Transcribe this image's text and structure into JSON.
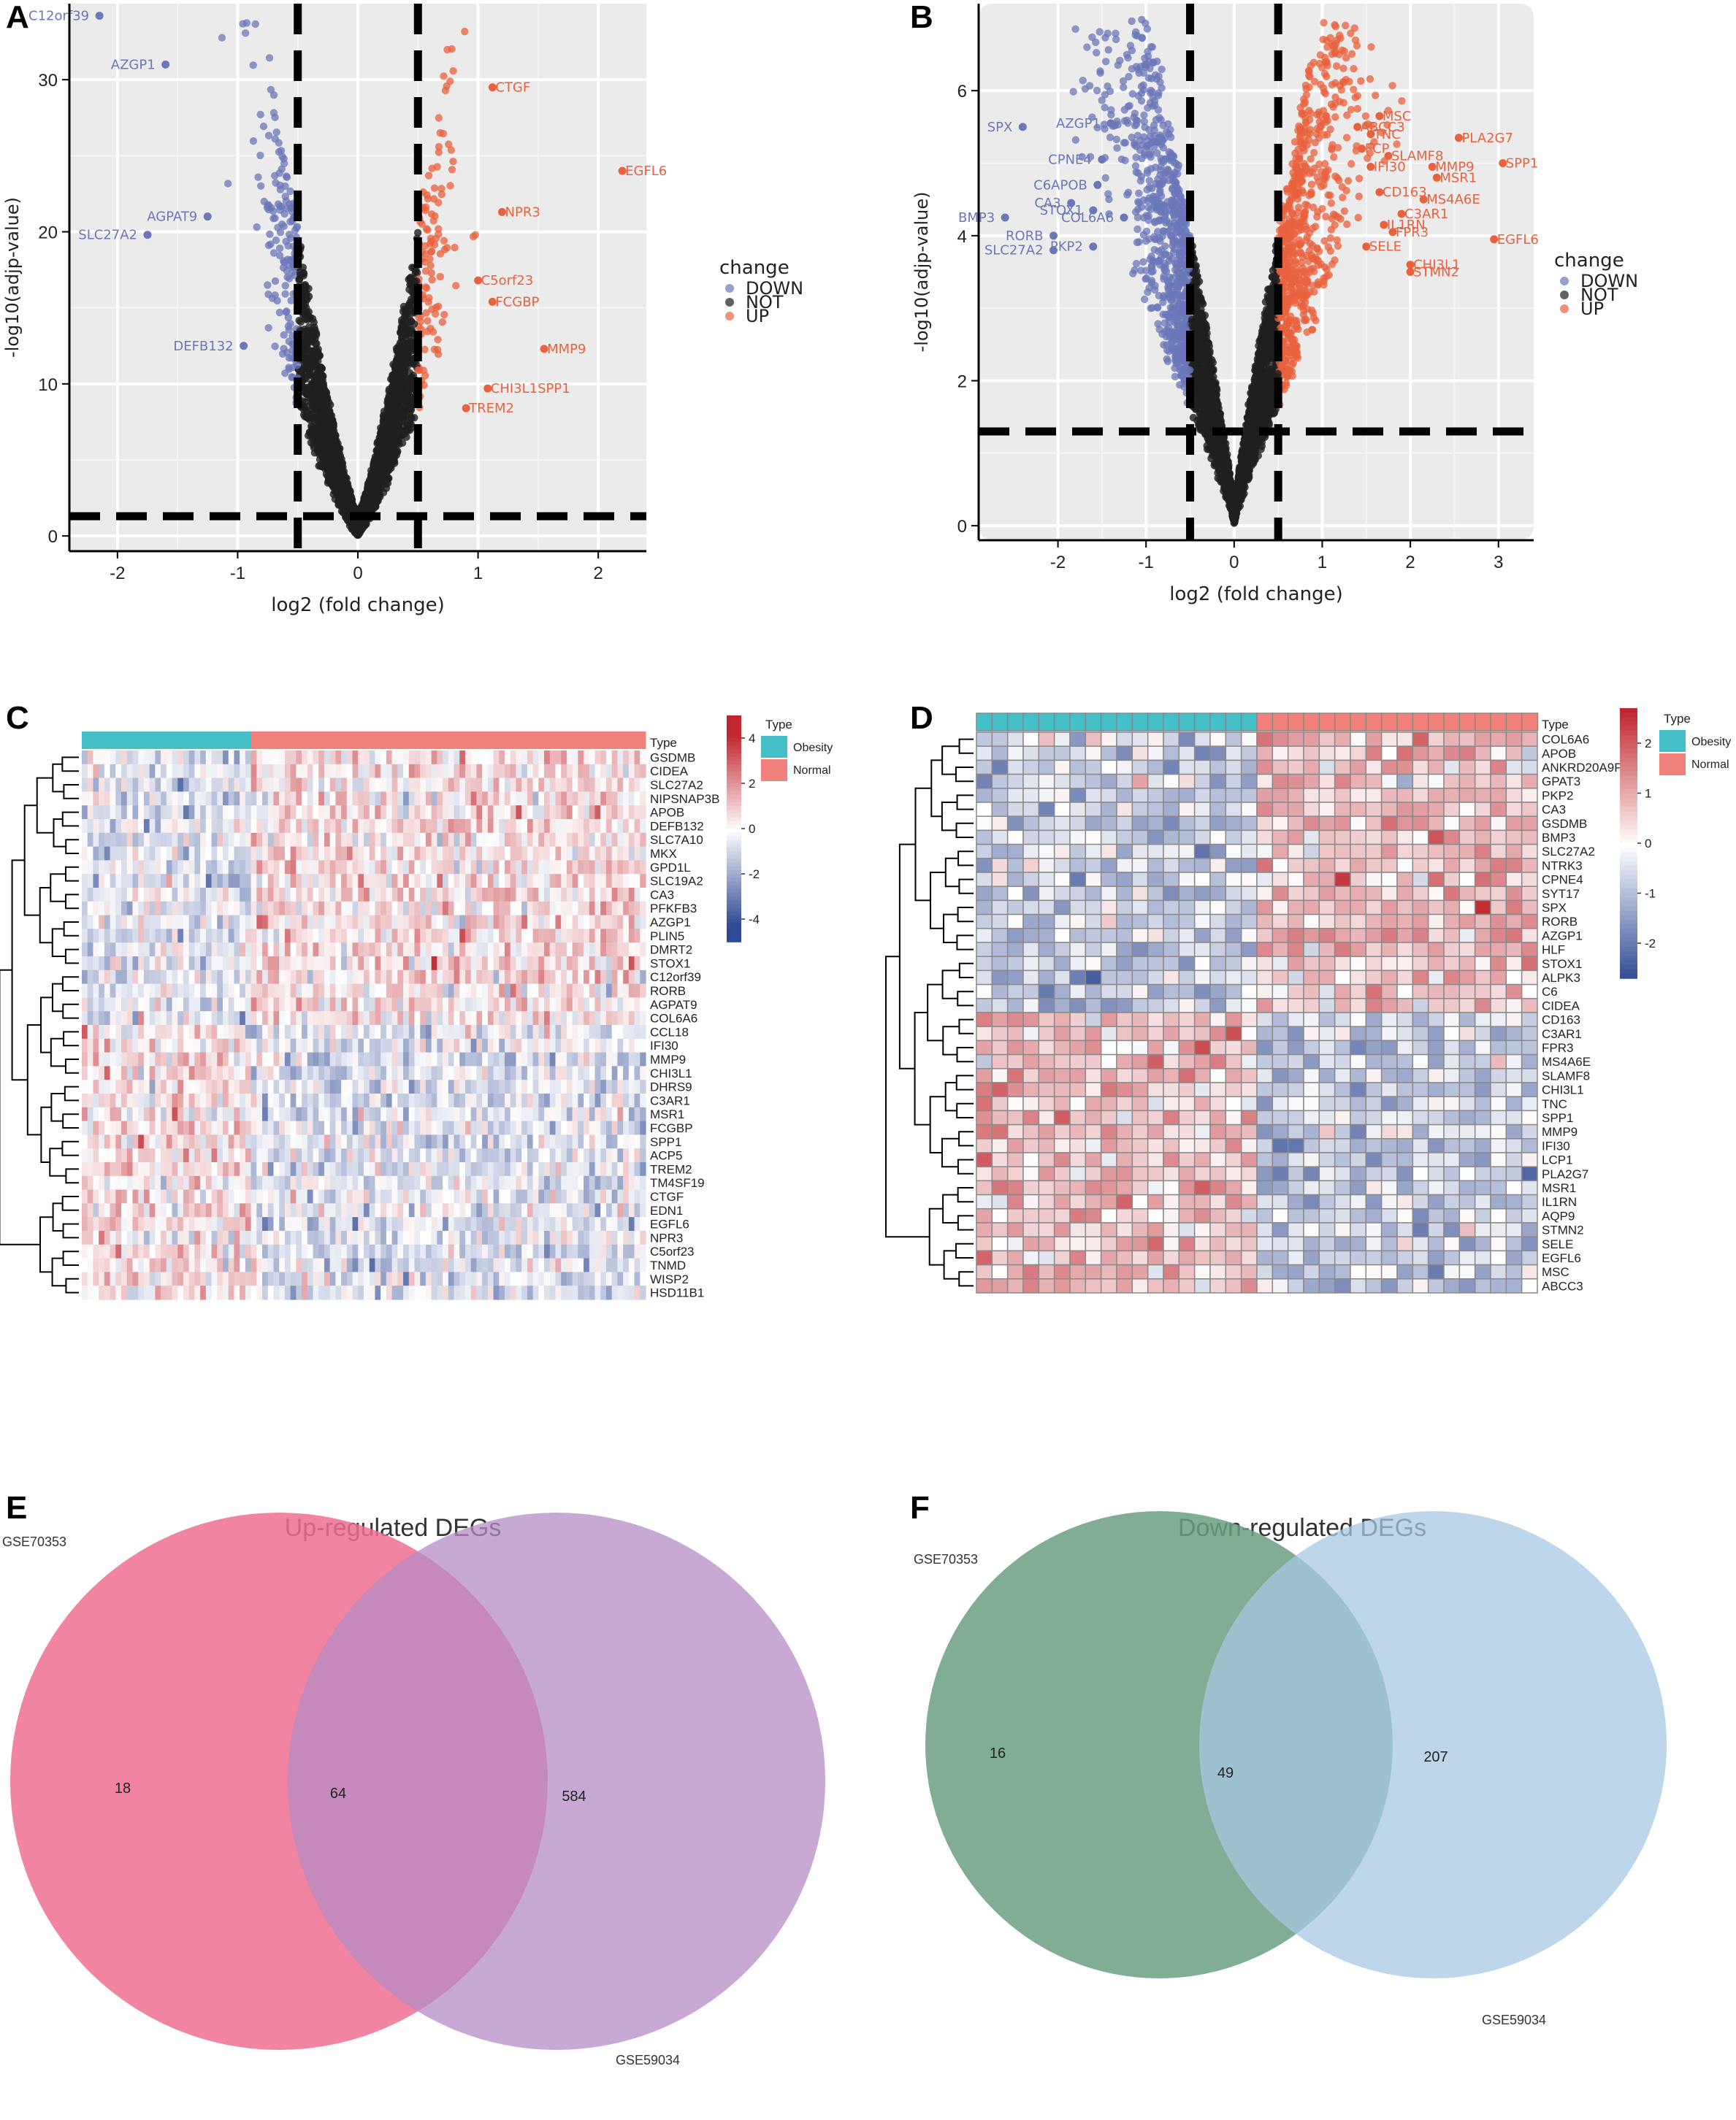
{
  "panels": {
    "A": "A",
    "B": "B",
    "C": "C",
    "D": "D",
    "E": "E",
    "F": "F"
  },
  "colors": {
    "down": "#6a77b8",
    "not": "#1f1f1f",
    "up": "#e8623e",
    "panel_bg": "#ebebeb",
    "obesity": "#45c0c9",
    "normal": "#f0807a",
    "heat_high": "#c0262d",
    "heat_low": "#2f4a94",
    "venn_up_left": "#ee6f91",
    "venn_up_right": "#b68cc4",
    "venn_down_left": "#6a9f80",
    "venn_down_right": "#a7c8e3"
  },
  "chart_data": [
    {
      "id": "A",
      "type": "scatter",
      "title": "",
      "xlabel": "log2 (fold change)",
      "ylabel": "-log10(adjp-value)",
      "xlim": [
        -2.4,
        2.4
      ],
      "ylim": [
        -1,
        35
      ],
      "xticks": [
        -2,
        -1,
        0,
        1,
        2
      ],
      "yticks": [
        0,
        10,
        20,
        30
      ],
      "thresholds": {
        "x": [
          -0.5,
          0.5
        ],
        "y": 1.3
      },
      "legend": {
        "title": "change",
        "entries": [
          "DOWN",
          "NOT",
          "UP"
        ]
      },
      "labeled_genes": [
        {
          "name": "C12orf39",
          "x": -2.15,
          "y": 34.2,
          "group": "down"
        },
        {
          "name": "AZGP1",
          "x": -1.6,
          "y": 31.0,
          "group": "down"
        },
        {
          "name": "AGPAT9",
          "x": -1.25,
          "y": 21.0,
          "group": "down"
        },
        {
          "name": "SLC27A2",
          "x": -1.75,
          "y": 19.8,
          "group": "down"
        },
        {
          "name": "DEFB132",
          "x": -0.95,
          "y": 12.5,
          "group": "down"
        },
        {
          "name": "CTGF",
          "x": 1.12,
          "y": 29.5,
          "group": "up"
        },
        {
          "name": "EGFL6",
          "x": 2.2,
          "y": 24.0,
          "group": "up"
        },
        {
          "name": "NPR3",
          "x": 1.2,
          "y": 21.3,
          "group": "up"
        },
        {
          "name": "C5orf23",
          "x": 1.0,
          "y": 16.8,
          "group": "up"
        },
        {
          "name": "FCGBP",
          "x": 1.12,
          "y": 15.4,
          "group": "up"
        },
        {
          "name": "MMP9",
          "x": 1.55,
          "y": 12.3,
          "group": "up"
        },
        {
          "name": "CHI3L1SPP1",
          "x": 1.08,
          "y": 9.7,
          "group": "up"
        },
        {
          "name": "TREM2",
          "x": 0.9,
          "y": 8.4,
          "group": "up"
        }
      ]
    },
    {
      "id": "B",
      "type": "scatter",
      "title": "",
      "xlabel": "log2 (fold change)",
      "ylabel": "-log10(adjp-value)",
      "xlim": [
        -2.9,
        3.4
      ],
      "ylim": [
        -0.2,
        7.2
      ],
      "xticks": [
        -2,
        -1,
        0,
        1,
        2,
        3
      ],
      "yticks": [
        0,
        2,
        4,
        6
      ],
      "thresholds": {
        "x": [
          -0.5,
          0.5
        ],
        "y": 1.3
      },
      "legend": {
        "title": "change",
        "entries": [
          "DOWN",
          "NOT",
          "UP"
        ]
      },
      "labeled_genes": [
        {
          "name": "SPX",
          "x": -2.4,
          "y": 5.5,
          "group": "down"
        },
        {
          "name": "AZGP1",
          "x": -1.4,
          "y": 5.55,
          "group": "down"
        },
        {
          "name": "CPNE4",
          "x": -1.5,
          "y": 5.05,
          "group": "down"
        },
        {
          "name": "C6APOB",
          "x": -1.55,
          "y": 4.7,
          "group": "down"
        },
        {
          "name": "CA3",
          "x": -1.85,
          "y": 4.45,
          "group": "down"
        },
        {
          "name": "STOX1",
          "x": -1.6,
          "y": 4.35,
          "group": "down"
        },
        {
          "name": "COL6A6",
          "x": -1.25,
          "y": 4.25,
          "group": "down"
        },
        {
          "name": "BMP3",
          "x": -2.6,
          "y": 4.25,
          "group": "down"
        },
        {
          "name": "RORB",
          "x": -2.05,
          "y": 4.0,
          "group": "down"
        },
        {
          "name": "SLC27A2",
          "x": -2.05,
          "y": 3.8,
          "group": "down"
        },
        {
          "name": "PKP2",
          "x": -1.6,
          "y": 3.85,
          "group": "down"
        },
        {
          "name": "MSC",
          "x": 1.65,
          "y": 5.65,
          "group": "up"
        },
        {
          "name": "ABCC3",
          "x": 1.4,
          "y": 5.5,
          "group": "up"
        },
        {
          "name": "TNC",
          "x": 1.55,
          "y": 5.4,
          "group": "up"
        },
        {
          "name": "PLA2G7",
          "x": 2.55,
          "y": 5.35,
          "group": "up"
        },
        {
          "name": "FCP",
          "x": 1.45,
          "y": 5.2,
          "group": "up"
        },
        {
          "name": "SLAMF8",
          "x": 1.75,
          "y": 5.1,
          "group": "up"
        },
        {
          "name": "SPP1",
          "x": 3.05,
          "y": 5.0,
          "group": "up"
        },
        {
          "name": "IFI30",
          "x": 1.55,
          "y": 4.95,
          "group": "up"
        },
        {
          "name": "MMP9",
          "x": 2.25,
          "y": 4.95,
          "group": "up"
        },
        {
          "name": "MSR1",
          "x": 2.3,
          "y": 4.8,
          "group": "up"
        },
        {
          "name": "CD163",
          "x": 1.65,
          "y": 4.6,
          "group": "up"
        },
        {
          "name": "MS4A6E",
          "x": 2.15,
          "y": 4.5,
          "group": "up"
        },
        {
          "name": "C3AR1",
          "x": 1.9,
          "y": 4.3,
          "group": "up"
        },
        {
          "name": "IL1RN",
          "x": 1.7,
          "y": 4.15,
          "group": "up"
        },
        {
          "name": "FPR3",
          "x": 1.8,
          "y": 4.05,
          "group": "up"
        },
        {
          "name": "EGFL6",
          "x": 2.95,
          "y": 3.95,
          "group": "up"
        },
        {
          "name": "SELE",
          "x": 1.5,
          "y": 3.85,
          "group": "up"
        },
        {
          "name": "CHI3L1",
          "x": 2.0,
          "y": 3.6,
          "group": "up"
        },
        {
          "name": "STMN2",
          "x": 2.0,
          "y": 3.5,
          "group": "up"
        }
      ]
    },
    {
      "id": "C",
      "type": "heatmap",
      "title": "",
      "annotation_label": "Type",
      "legend": {
        "title": "Type",
        "entries": [
          "Obesity",
          "Normal"
        ]
      },
      "colorbar": {
        "ticks": [
          4,
          2,
          0,
          -2,
          -4
        ],
        "range": [
          -5,
          5
        ]
      },
      "groups": [
        {
          "name": "Obesity",
          "n": 30
        },
        {
          "name": "Normal",
          "n": 70
        }
      ],
      "rows": [
        "GSDMB",
        "CIDEA",
        "SLC27A2",
        "NIPSNAP3B",
        "APOB",
        "DEFB132",
        "SLC7A10",
        "MKX",
        "GPD1L",
        "SLC19A2",
        "CA3",
        "PFKFB3",
        "AZGP1",
        "PLIN5",
        "DMRT2",
        "STOX1",
        "C12orf39",
        "RORB",
        "AGPAT9",
        "COL6A6",
        "CCL18",
        "IFI30",
        "MMP9",
        "CHI3L1",
        "DHRS9",
        "C3AR1",
        "MSR1",
        "FCGBP",
        "SPP1",
        "ACP5",
        "TREM2",
        "TM4SF19",
        "CTGF",
        "EDN1",
        "EGFL6",
        "NPR3",
        "C5orf23",
        "TNMD",
        "WISP2",
        "HSD11B1"
      ],
      "row_pattern": [
        "down in obesity (rows 1-20)",
        "up in obesity (rows 21-40)"
      ]
    },
    {
      "id": "D",
      "type": "heatmap",
      "title": "",
      "annotation_label": "Type",
      "legend": {
        "title": "Type",
        "entries": [
          "Obesity",
          "Normal"
        ]
      },
      "colorbar": {
        "ticks": [
          2,
          1,
          0,
          -1,
          -2
        ],
        "range": [
          -2.7,
          2.7
        ]
      },
      "groups": [
        {
          "name": "Obesity",
          "n": 18
        },
        {
          "name": "Normal",
          "n": 18
        }
      ],
      "rows": [
        "COL6A6",
        "APOB",
        "ANKRD20A9P",
        "GPAT3",
        "PKP2",
        "CA3",
        "GSDMB",
        "BMP3",
        "SLC27A2",
        "NTRK3",
        "CPNE4",
        "SYT17",
        "SPX",
        "RORB",
        "AZGP1",
        "HLF",
        "STOX1",
        "ALPK3",
        "C6",
        "CIDEA",
        "CD163",
        "C3AR1",
        "FPR3",
        "MS4A6E",
        "SLAMF8",
        "CHI3L1",
        "TNC",
        "SPP1",
        "MMP9",
        "IFI30",
        "LCP1",
        "PLA2G7",
        "MSR1",
        "IL1RN",
        "AQP9",
        "STMN2",
        "SELE",
        "EGFL6",
        "MSC",
        "ABCC3"
      ]
    },
    {
      "id": "E",
      "type": "venn",
      "title": "Up-regulated DEGs",
      "sets": [
        "GSE70353",
        "GSE59034"
      ],
      "values": {
        "left_only": 18,
        "overlap": 64,
        "right_only": 584
      }
    },
    {
      "id": "F",
      "type": "venn",
      "title": "Down-regulated DEGs",
      "sets": [
        "GSE70353",
        "GSE59034"
      ],
      "values": {
        "left_only": 16,
        "overlap": 49,
        "right_only": 207
      }
    }
  ]
}
